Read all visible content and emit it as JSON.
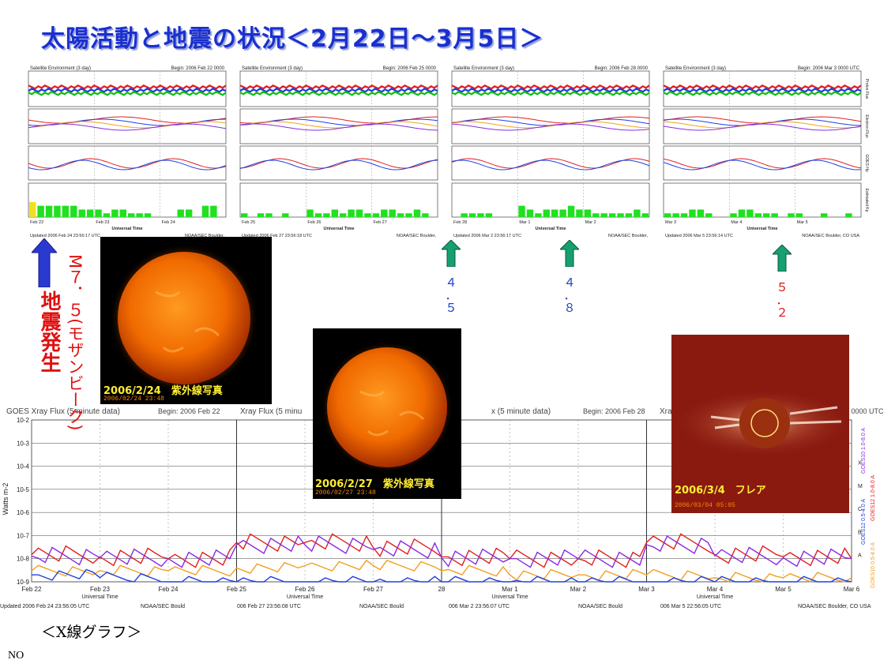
{
  "title": "太陽活動と地震の状況＜2月22日～3月5日＞",
  "satellite_panels": [
    {
      "header": "Satellite Environment (3 day)",
      "begin": "Begin: 2006 Feb 22 0000",
      "ticks": [
        "Feb 22",
        "Feb 23",
        "Feb 24"
      ],
      "updated": "Updated 2006 Feb 24 23:56:17 UTC",
      "credit": "NOAA/SEC Boulder,"
    },
    {
      "header": "Satellite Environment (3 day)",
      "begin": "Begin: 2006 Feb 25 0000",
      "ticks": [
        "Feb 25",
        "Feb 26",
        "Feb 27"
      ],
      "updated": "Updated 2006 Feb 27 23:56:18 UTC",
      "credit": "NOAA/SEC Boulder,"
    },
    {
      "header": "Satellite Environment (3 day)",
      "begin": "Begin: 2006 Feb 28 0000",
      "ticks": [
        "Feb 28",
        "Mar 1",
        "Mar 2"
      ],
      "updated": "Updated 2006 Mar 2 23:56:17 UTC",
      "credit": "NOAA/SEC Boulder,"
    },
    {
      "header": "Satellite Environment (3 day)",
      "begin": "Begin: 2006 Mar 3 0000 UTC",
      "ticks": [
        "Mar 3",
        "Mar 4",
        "Mar 5"
      ],
      "updated": "Updated 2006 Mar 5 23:56:14 UTC",
      "credit": "NOAA/SEC Boulder, CO USA"
    }
  ],
  "satellite_axis": {
    "xlabel": "Universal Time",
    "right_labels": [
      "Proton Flux",
      "Electron Flux",
      "GOES Hp",
      "Estimated Kp"
    ]
  },
  "chart_data": [
    {
      "type": "bar",
      "title": "Satellite Environment (3 day)",
      "ylabel": "Estimated Kp",
      "ylim": [
        0,
        9
      ],
      "categories": [
        "Feb 22",
        "",
        "",
        "",
        "",
        "",
        "",
        "",
        "Feb 23",
        "",
        "",
        "",
        "",
        "",
        "",
        "",
        "Feb 24",
        "",
        "",
        "",
        "",
        "",
        "",
        "",
        "Feb 25",
        "",
        "",
        "",
        "",
        "",
        "",
        "",
        "Feb 26",
        "",
        "",
        "",
        "",
        "",
        "",
        "",
        "Feb 27",
        "",
        "",
        "",
        "",
        "",
        "",
        "",
        "Feb 28",
        "",
        "",
        "",
        "",
        "",
        "",
        "",
        "Mar 1",
        "",
        "",
        "",
        "",
        "",
        "",
        "",
        "Mar 2",
        "",
        "",
        "",
        "",
        "",
        "",
        "",
        "Mar 3",
        "",
        "",
        "",
        "",
        "",
        "",
        "",
        "Mar 4",
        "",
        "",
        "",
        "",
        "",
        "",
        "",
        "Mar 5",
        "",
        "",
        "",
        "",
        "",
        "",
        ""
      ],
      "values": [
        4,
        3,
        3,
        3,
        3,
        3,
        2,
        2,
        2,
        1,
        2,
        2,
        1,
        1,
        1,
        0,
        0,
        0,
        2,
        2,
        0,
        3,
        3,
        0,
        1,
        0,
        1,
        1,
        0,
        1,
        0,
        0,
        2,
        1,
        1,
        2,
        1,
        2,
        2,
        1,
        1,
        2,
        2,
        1,
        1,
        2,
        1,
        0,
        0,
        1,
        1,
        1,
        1,
        0,
        0,
        0,
        3,
        2,
        1,
        2,
        2,
        2,
        3,
        2,
        2,
        1,
        1,
        1,
        1,
        1,
        2,
        1,
        1,
        1,
        1,
        2,
        2,
        1,
        0,
        0,
        1,
        2,
        2,
        1,
        1,
        1,
        0,
        1,
        1,
        0,
        0,
        1,
        0,
        0,
        1,
        0
      ]
    },
    {
      "type": "line",
      "title": "GOES Xray Flux (5 minute data)",
      "ylabel": "Watts m-2",
      "ylim": [
        1e-09,
        0.01
      ],
      "yscale": "log",
      "xlabel": "Universal Time",
      "x": [
        "Feb 22",
        "Feb 23",
        "Feb 24",
        "Feb 25",
        "Feb 26",
        "Feb 27",
        "Feb 28",
        "Mar 1",
        "Mar 2",
        "Mar 3",
        "Mar 4",
        "Mar 5",
        "Mar 6"
      ],
      "series": [
        {
          "name": "GOES12 1.0-8.0 A",
          "color": "#e02020",
          "values": [
            1.5e-08,
            1.2e-08,
            1e-08,
            5e-08,
            5e-08,
            3e-08,
            1.2e-08,
            1e-08,
            1e-08,
            5e-08,
            1.5e-08,
            1.2e-08,
            1e-08
          ]
        },
        {
          "name": "GOES10 1.0-8.0 A",
          "color": "#8a2be2",
          "values": [
            1.3e-08,
            1.1e-08,
            1e-08,
            4e-08,
            4e-08,
            2.5e-08,
            1.1e-08,
            1e-08,
            1e-08,
            4e-08,
            1.3e-08,
            1.1e-08,
            1e-08
          ]
        },
        {
          "name": "GOES10 0.5-4.0 A",
          "color": "#f0a020",
          "values": [
            3e-09,
            3e-09,
            3e-09,
            4e-09,
            5e-09,
            5e-09,
            3e-09,
            2e-09,
            2e-09,
            2e-09,
            1.5e-09,
            1.5e-09,
            1.5e-09
          ]
        },
        {
          "name": "GOES12 0.5-4.0 A",
          "color": "#2040e0",
          "values": [
            2e-09,
            1.5e-09,
            1e-09,
            1e-09,
            1e-09,
            1e-09,
            1e-09,
            1e-09,
            1e-09,
            1e-09,
            1e-09,
            1e-09,
            1e-09
          ]
        }
      ]
    }
  ],
  "xray": {
    "title_full": "GOES Xray Flux (5 minute data)",
    "title_frag2": "Xray Flux (5 minu",
    "title_frag3": "x (5 minute data)",
    "title_frag4": "Xra",
    "begin1": "Begin: 2006 Feb 22",
    "begin3": "Begin: 2006 Feb 28",
    "begin4": "3 0000 UTC",
    "ylabel": "Watts m-2",
    "ytick_labels": [
      "10-2",
      "10-3",
      "10-4",
      "10-5",
      "10-6",
      "10-7",
      "10-8",
      "10-9"
    ],
    "class_letters": [
      "X",
      "M",
      "C",
      "B",
      "A"
    ],
    "xticks": [
      "Feb 22",
      "Feb 23",
      "Feb 24",
      "Feb 25",
      "Feb 26",
      "Feb 27",
      "28",
      "Mar 1",
      "Mar 2",
      "Mar 3",
      "Mar 4",
      "Mar 5",
      "Mar 6"
    ],
    "xlabel": "Universal Time",
    "updated": [
      "Updated 2006 Feb 24 23:56:05 UTC",
      "NOAA/SEC Bould",
      "006 Feb 27 23:56:08 UTC",
      "NOAA/SEC Bould",
      "006 Mar  2 23:56:07 UTC",
      "NOAA/SEC Bould",
      "006 Mar  5 22:56:05 UTC",
      "NOAA/SEC Boulder, CO USA"
    ],
    "legend": [
      "GOES12 1.0-8.0 A",
      "GOES10 1.0-8.0 A",
      "GOES10 0.5-4.0 A",
      "GOES12 0.5-4.0 A"
    ],
    "legend_colors": [
      "#e02020",
      "#8a2be2",
      "#f0a020",
      "#2040e0"
    ]
  },
  "photos": [
    {
      "caption": "2006/2/24　紫外線写真",
      "stamp": "2006/02/24 23:48"
    },
    {
      "caption": "2006/2/27　紫外線写真",
      "stamp": "2006/02/27 23:48"
    },
    {
      "caption": "2006/3/4　フレア",
      "stamp": "2006/03/04 05:05"
    }
  ],
  "earthquake": {
    "label": "地震発生",
    "main_mag": "M７．５(モザンビーク)",
    "events": [
      {
        "mag1": "４",
        "mag2": "．",
        "mag3": "５",
        "color": "#2040c0"
      },
      {
        "mag1": "４",
        "mag2": "．",
        "mag3": "８",
        "color": "#2040c0"
      },
      {
        "mag1": "５",
        "mag2": "．",
        "mag3": "２",
        "color": "#e01010"
      }
    ]
  },
  "colors": {
    "title": "#1a2fd0",
    "quake_arrow": "#2a3ad0",
    "event_arrow": "#16a070",
    "earthquake_text": "#e01010"
  },
  "xray_caption": "＜X線グラフ＞",
  "footer_label": "NO"
}
